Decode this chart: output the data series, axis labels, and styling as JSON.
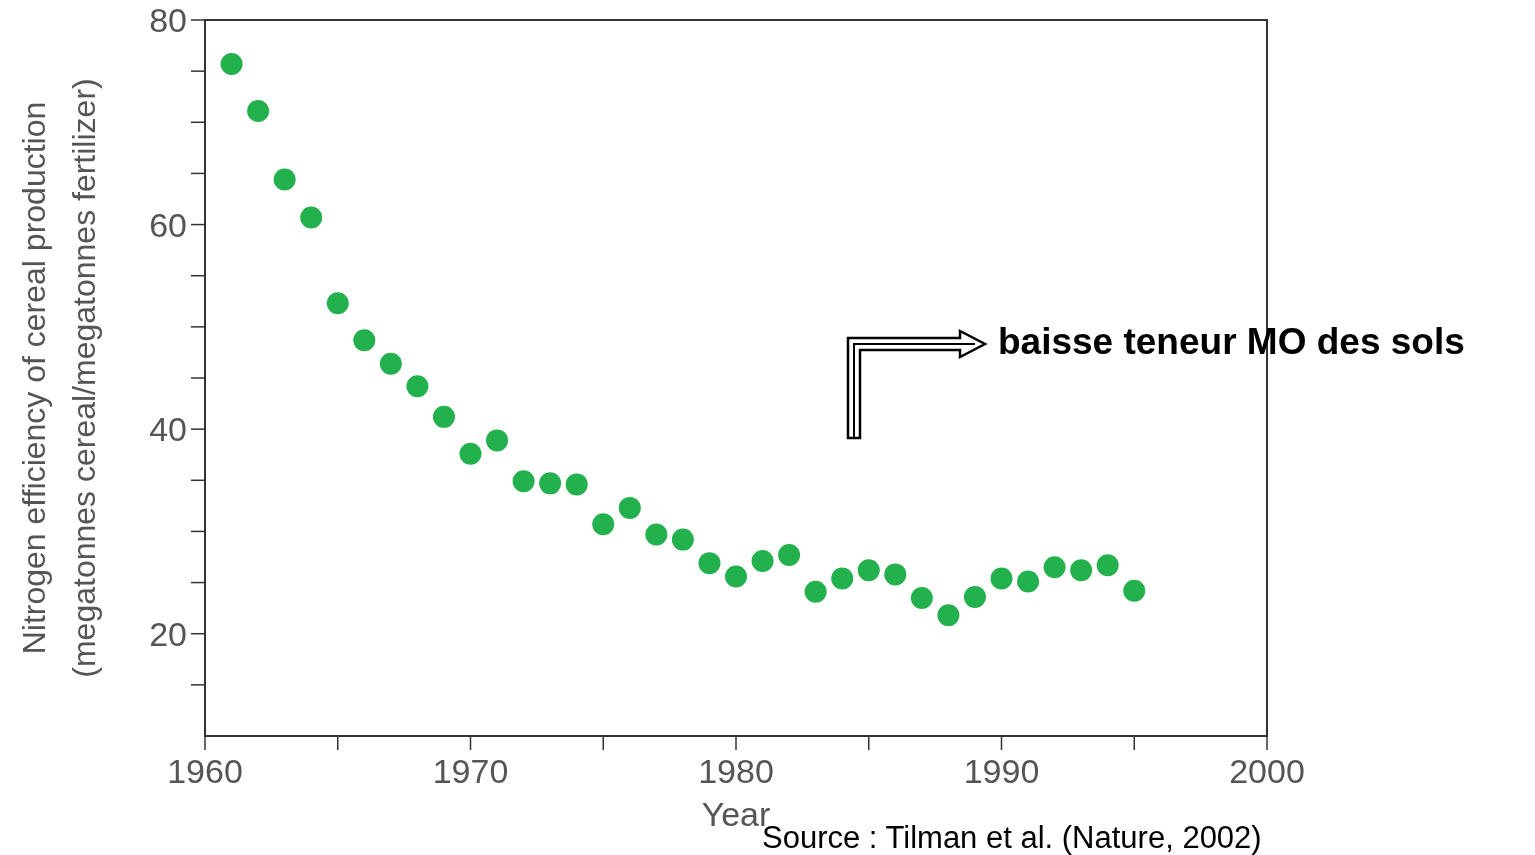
{
  "chart_data": {
    "type": "scatter",
    "xlabel": "Year",
    "ylabel": "Nitrogen efficiency of cereal production\n(megatonnes cereal/megatonnes fertilizer)",
    "x": [
      1961,
      1962,
      1963,
      1964,
      1965,
      1966,
      1967,
      1968,
      1969,
      1970,
      1971,
      1972,
      1973,
      1974,
      1975,
      1976,
      1977,
      1978,
      1979,
      1980,
      1981,
      1982,
      1983,
      1984,
      1985,
      1986,
      1987,
      1988,
      1989,
      1990,
      1991,
      1992,
      1993,
      1994,
      1995
    ],
    "series": [
      {
        "color": "#22b14c",
        "values": [
          75.7,
          71.1,
          64.4,
          60.7,
          52.3,
          48.7,
          46.4,
          44.2,
          41.2,
          37.6,
          38.9,
          34.9,
          34.7,
          34.6,
          30.7,
          32.3,
          29.7,
          29.2,
          26.9,
          25.6,
          27.1,
          27.7,
          24.1,
          25.4,
          26.2,
          25.8,
          23.5,
          21.8,
          23.6,
          25.4,
          25.1,
          26.5,
          26.2,
          26.7,
          24.2
        ]
      }
    ],
    "xlim": [
      1960,
      2000
    ],
    "ylim": [
      10,
      80
    ],
    "xticks": [
      1960,
      {
        "value": 1965,
        "label": null
      },
      1970,
      {
        "value": 1975,
        "label": null
      },
      1980,
      {
        "value": 1985,
        "label": null
      },
      1990,
      {
        "value": 1995,
        "label": null
      },
      2000
    ],
    "yticks": [
      {
        "value": 15,
        "label": null
      },
      20,
      {
        "value": 25,
        "label": null
      },
      {
        "value": 30,
        "label": null
      },
      {
        "value": 35,
        "label": null
      },
      40,
      {
        "value": 45,
        "label": null
      },
      {
        "value": 50,
        "label": null
      },
      {
        "value": 55,
        "label": null
      },
      60,
      {
        "value": 65,
        "label": null
      },
      {
        "value": 70,
        "label": null
      },
      {
        "value": 75,
        "label": null
      },
      80
    ],
    "grid": false,
    "marker": "circle",
    "annotations": [
      "baisse teneur MO des sols",
      "Source : Tilman et al. (Nature, 2002)"
    ]
  }
}
